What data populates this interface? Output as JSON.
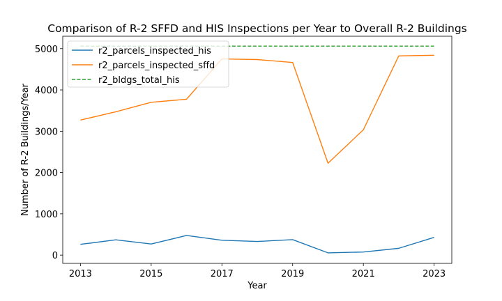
{
  "chart_data": {
    "type": "line",
    "title": "Comparison of R-2 SFFD and HIS Inspections per Year to Overall R-2 Buildings",
    "xlabel": "Year",
    "ylabel": "Number of R-2 Buildings/Year",
    "xlim": [
      2012.5,
      2023.5
    ],
    "ylim": [
      -200,
      5300
    ],
    "x": [
      2013,
      2014,
      2015,
      2016,
      2017,
      2018,
      2019,
      2020,
      2021,
      2022,
      2023
    ],
    "x_ticks": [
      2013,
      2015,
      2017,
      2019,
      2021,
      2023
    ],
    "y_ticks": [
      0,
      1000,
      2000,
      3000,
      4000,
      5000
    ],
    "grid": false,
    "legend_position": "upper-left",
    "series": [
      {
        "name": "r2_parcels_inspected_his",
        "color": "#1f77b4",
        "style": "solid",
        "values": [
          260,
          370,
          270,
          475,
          360,
          330,
          375,
          55,
          75,
          165,
          430
        ]
      },
      {
        "name": "r2_parcels_inspected_sffd",
        "color": "#ff7f0e",
        "style": "solid",
        "values": [
          3270,
          3470,
          3700,
          3775,
          4750,
          4735,
          4665,
          2225,
          3035,
          4825,
          4840
        ]
      },
      {
        "name": "r2_bldgs_total_his",
        "color": "#2ca02c",
        "style": "dashed",
        "values": [
          5060,
          5060,
          5060,
          5060,
          5060,
          5060,
          5060,
          5060,
          5060,
          5060,
          5060
        ]
      }
    ]
  }
}
